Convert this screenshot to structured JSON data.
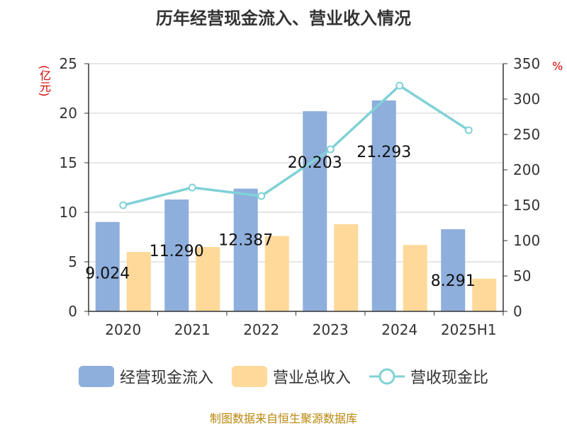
{
  "title": "历年经营现金流入、营业收入情况",
  "left_unit": "(亿元)",
  "right_unit": "%",
  "source": "制图数据来自恒生聚源数据库",
  "colors": {
    "cash_bar": "#8eaedc",
    "revenue_bar": "#ffd99a",
    "ratio_line": "#7fd1d6",
    "unit_text": "#d40000"
  },
  "chart_data": {
    "type": "bar",
    "categories": [
      "2020",
      "2021",
      "2022",
      "2023",
      "2024",
      "2025H1"
    ],
    "series": [
      {
        "name": "经营现金流入",
        "axis": "left",
        "type": "bar",
        "values": [
          9.024,
          11.29,
          12.387,
          20.203,
          21.293,
          8.291
        ],
        "labels": [
          "9.024",
          "11.290",
          "12.387",
          "20.203",
          "21.293",
          "8.291"
        ]
      },
      {
        "name": "营业总收入",
        "axis": "left",
        "type": "bar",
        "values": [
          6.0,
          6.5,
          7.6,
          8.8,
          6.7,
          3.3
        ]
      },
      {
        "name": "营收现金比",
        "axis": "right",
        "type": "line",
        "values": [
          150,
          175,
          163,
          229,
          319,
          256
        ]
      }
    ],
    "y_left": {
      "min": 0,
      "max": 25,
      "ticks": [
        0,
        5,
        10,
        15,
        20,
        25
      ]
    },
    "y_right": {
      "min": 0,
      "max": 350,
      "ticks": [
        0,
        50,
        100,
        150,
        200,
        250,
        300,
        350
      ]
    },
    "grid": true,
    "legend_position": "bottom"
  }
}
